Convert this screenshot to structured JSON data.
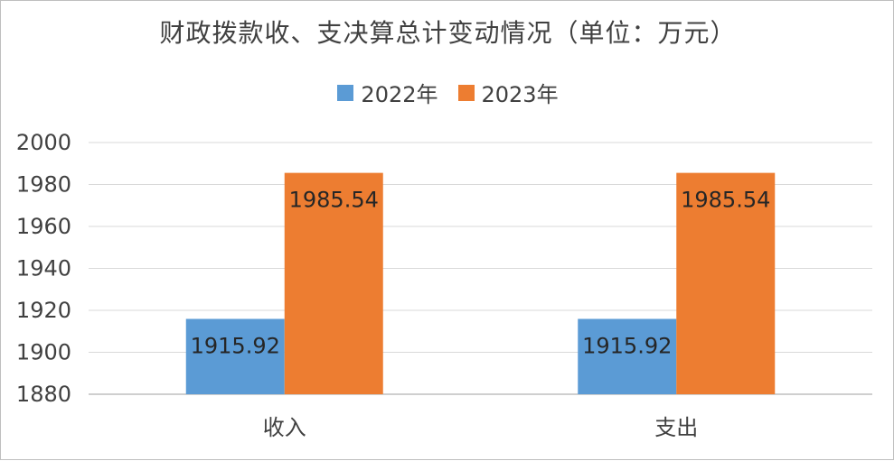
{
  "chart_data": {
    "type": "bar",
    "title": "财政拨款收、支决算总计变动情况（单位：万元）",
    "categories": [
      "收入",
      "支出"
    ],
    "series": [
      {
        "name": "2022年",
        "values": [
          1915.92,
          1915.92
        ],
        "labels": [
          "1915.92",
          "1915.92"
        ],
        "color": "#5b9bd5"
      },
      {
        "name": "2023年",
        "values": [
          1985.54,
          1985.54
        ],
        "labels": [
          "1985.54",
          "1985.54"
        ],
        "color": "#ed7d31"
      }
    ],
    "ylim": [
      1880,
      2000
    ],
    "yticks": [
      "1880",
      "1900",
      "1920",
      "1940",
      "1960",
      "1980",
      "2000"
    ],
    "grid": true,
    "legend_position": "top",
    "xlabel": "",
    "ylabel": ""
  }
}
